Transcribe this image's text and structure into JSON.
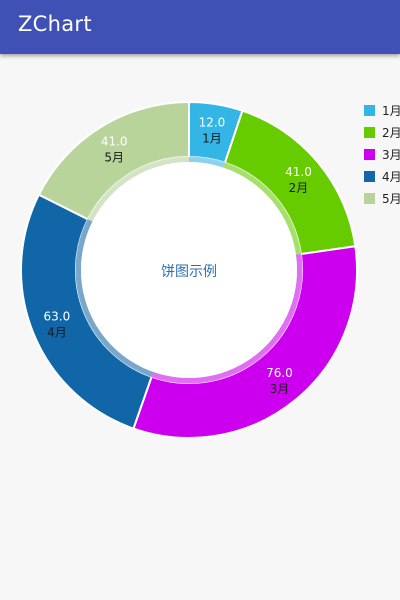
{
  "app": {
    "title": "ZChart"
  },
  "chart_data": {
    "type": "pie",
    "center_label": "饼图示例",
    "categories": [
      "1月",
      "2月",
      "3月",
      "4月",
      "5月"
    ],
    "values": [
      12.0,
      41.0,
      76.0,
      63.0,
      41.0
    ],
    "value_labels": [
      "12.0",
      "41.0",
      "76.0",
      "63.0",
      "41.0"
    ],
    "colors": [
      "#33b5e5",
      "#66cc00",
      "#cc00ee",
      "#1166a8",
      "#b8d49a"
    ],
    "legend_position": "right"
  }
}
